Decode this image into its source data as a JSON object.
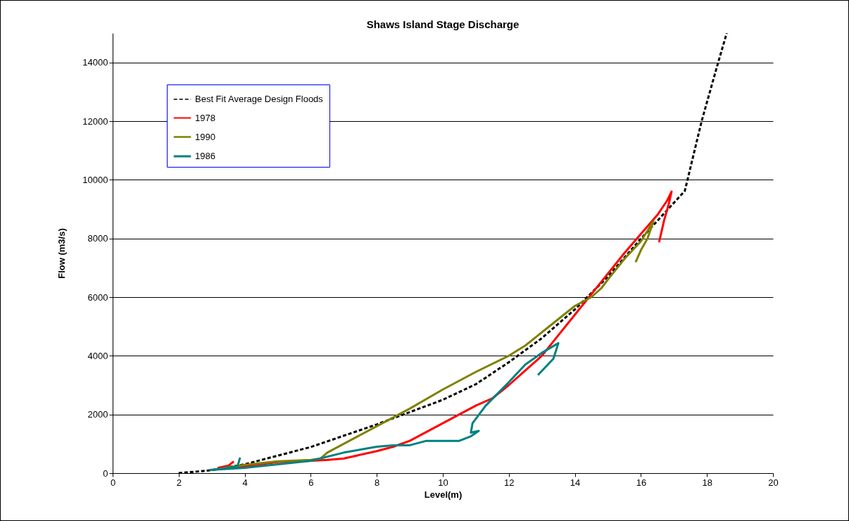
{
  "chart_data": {
    "type": "line",
    "title": "Shaws Island Stage Discharge",
    "xlabel": "Level(m)",
    "ylabel": "Flow (m3/s)",
    "xlim": [
      0,
      20
    ],
    "xticks": [
      0,
      2,
      4,
      6,
      8,
      10,
      12,
      14,
      16,
      18,
      20
    ],
    "ylim": [
      0,
      15000
    ],
    "yticks": [
      0,
      2000,
      4000,
      6000,
      8000,
      10000,
      12000,
      14000
    ],
    "grid": "y",
    "legend": "top left",
    "line_style": "solid",
    "series": [
      {
        "name": "Best Fit Average Design Floods",
        "color": "#000000",
        "line_style": "dashed",
        "x": [
          2,
          3,
          4,
          6,
          8,
          10,
          11,
          12,
          13,
          14,
          15,
          16,
          17.33,
          17.84,
          18.34,
          18.6
        ],
        "values": [
          0,
          100,
          300,
          890,
          1660,
          2500,
          3030,
          3780,
          4600,
          5580,
          6700,
          7990,
          9620,
          12000,
          14000,
          15000
        ]
      },
      {
        "name": "1978",
        "color": "#ff0000",
        "x": [
          3.67,
          3.5,
          3.2,
          4,
          5,
          6,
          6.5,
          7,
          8,
          8.5,
          9,
          9.5,
          10,
          10.5,
          11,
          11.5,
          12,
          12.5,
          13,
          13.5,
          14,
          14.5,
          15,
          15.5,
          15.88,
          16.5,
          16.8,
          16.93,
          16.85,
          16.7,
          16.55
        ],
        "values": [
          400,
          250,
          180,
          230,
          380,
          420,
          450,
          500,
          750,
          900,
          1100,
          1400,
          1700,
          2000,
          2300,
          2550,
          3000,
          3500,
          4000,
          4700,
          5400,
          6100,
          6800,
          7500,
          8000,
          8800,
          9300,
          9600,
          9200,
          8600,
          7870
        ]
      },
      {
        "name": "1990",
        "color": "#808000",
        "x": [
          3,
          3.5,
          4,
          5,
          6,
          6.3,
          6.5,
          7,
          8,
          9,
          10,
          11,
          12,
          12.5,
          13,
          13.5,
          14,
          14.5,
          14.8,
          15,
          15.5,
          16,
          16.38,
          16.2,
          16,
          15.84
        ],
        "values": [
          100,
          200,
          280,
          400,
          450,
          500,
          700,
          1000,
          1600,
          2200,
          2850,
          3450,
          4000,
          4350,
          4800,
          5250,
          5700,
          6000,
          6300,
          6600,
          7300,
          7900,
          8590,
          8000,
          7600,
          7190
        ]
      },
      {
        "name": "1986",
        "color": "#008080",
        "x": [
          3.86,
          3.78,
          3.3,
          2.95,
          4,
          5,
          6,
          7,
          8,
          8.5,
          9,
          9.5,
          10,
          10.5,
          10.84,
          11.09,
          10.85,
          10.9,
          11.3,
          12,
          12.5,
          13,
          13.5,
          13.35,
          12.88
        ],
        "values": [
          530,
          220,
          150,
          110,
          180,
          300,
          420,
          700,
          900,
          950,
          950,
          1100,
          1100,
          1100,
          1250,
          1440,
          1380,
          1700,
          2300,
          3100,
          3700,
          4100,
          4430,
          3900,
          3340
        ]
      }
    ]
  }
}
